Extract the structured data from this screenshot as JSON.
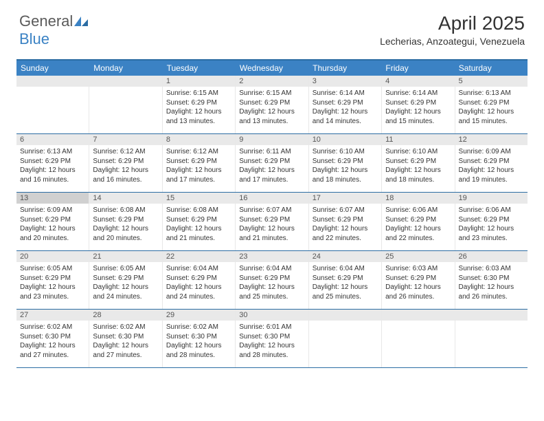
{
  "logo": {
    "part1": "General",
    "part2": "Blue"
  },
  "title": "April 2025",
  "location": "Lecherias, Anzoategui, Venezuela",
  "accent_color": "#3b82c4",
  "border_color": "#2b6ca3",
  "daynum_bg": "#e9e9e9",
  "highlight_bg": "#d0d0d0",
  "dow": [
    "Sunday",
    "Monday",
    "Tuesday",
    "Wednesday",
    "Thursday",
    "Friday",
    "Saturday"
  ],
  "weeks": [
    [
      {
        "n": "",
        "sr": "",
        "ss": "",
        "dl": ""
      },
      {
        "n": "",
        "sr": "",
        "ss": "",
        "dl": ""
      },
      {
        "n": "1",
        "sr": "Sunrise: 6:15 AM",
        "ss": "Sunset: 6:29 PM",
        "dl": "Daylight: 12 hours and 13 minutes."
      },
      {
        "n": "2",
        "sr": "Sunrise: 6:15 AM",
        "ss": "Sunset: 6:29 PM",
        "dl": "Daylight: 12 hours and 13 minutes."
      },
      {
        "n": "3",
        "sr": "Sunrise: 6:14 AM",
        "ss": "Sunset: 6:29 PM",
        "dl": "Daylight: 12 hours and 14 minutes."
      },
      {
        "n": "4",
        "sr": "Sunrise: 6:14 AM",
        "ss": "Sunset: 6:29 PM",
        "dl": "Daylight: 12 hours and 15 minutes."
      },
      {
        "n": "5",
        "sr": "Sunrise: 6:13 AM",
        "ss": "Sunset: 6:29 PM",
        "dl": "Daylight: 12 hours and 15 minutes."
      }
    ],
    [
      {
        "n": "6",
        "sr": "Sunrise: 6:13 AM",
        "ss": "Sunset: 6:29 PM",
        "dl": "Daylight: 12 hours and 16 minutes."
      },
      {
        "n": "7",
        "sr": "Sunrise: 6:12 AM",
        "ss": "Sunset: 6:29 PM",
        "dl": "Daylight: 12 hours and 16 minutes."
      },
      {
        "n": "8",
        "sr": "Sunrise: 6:12 AM",
        "ss": "Sunset: 6:29 PM",
        "dl": "Daylight: 12 hours and 17 minutes."
      },
      {
        "n": "9",
        "sr": "Sunrise: 6:11 AM",
        "ss": "Sunset: 6:29 PM",
        "dl": "Daylight: 12 hours and 17 minutes."
      },
      {
        "n": "10",
        "sr": "Sunrise: 6:10 AM",
        "ss": "Sunset: 6:29 PM",
        "dl": "Daylight: 12 hours and 18 minutes."
      },
      {
        "n": "11",
        "sr": "Sunrise: 6:10 AM",
        "ss": "Sunset: 6:29 PM",
        "dl": "Daylight: 12 hours and 18 minutes."
      },
      {
        "n": "12",
        "sr": "Sunrise: 6:09 AM",
        "ss": "Sunset: 6:29 PM",
        "dl": "Daylight: 12 hours and 19 minutes."
      }
    ],
    [
      {
        "n": "13",
        "hl": true,
        "sr": "Sunrise: 6:09 AM",
        "ss": "Sunset: 6:29 PM",
        "dl": "Daylight: 12 hours and 20 minutes."
      },
      {
        "n": "14",
        "sr": "Sunrise: 6:08 AM",
        "ss": "Sunset: 6:29 PM",
        "dl": "Daylight: 12 hours and 20 minutes."
      },
      {
        "n": "15",
        "sr": "Sunrise: 6:08 AM",
        "ss": "Sunset: 6:29 PM",
        "dl": "Daylight: 12 hours and 21 minutes."
      },
      {
        "n": "16",
        "sr": "Sunrise: 6:07 AM",
        "ss": "Sunset: 6:29 PM",
        "dl": "Daylight: 12 hours and 21 minutes."
      },
      {
        "n": "17",
        "sr": "Sunrise: 6:07 AM",
        "ss": "Sunset: 6:29 PM",
        "dl": "Daylight: 12 hours and 22 minutes."
      },
      {
        "n": "18",
        "sr": "Sunrise: 6:06 AM",
        "ss": "Sunset: 6:29 PM",
        "dl": "Daylight: 12 hours and 22 minutes."
      },
      {
        "n": "19",
        "sr": "Sunrise: 6:06 AM",
        "ss": "Sunset: 6:29 PM",
        "dl": "Daylight: 12 hours and 23 minutes."
      }
    ],
    [
      {
        "n": "20",
        "sr": "Sunrise: 6:05 AM",
        "ss": "Sunset: 6:29 PM",
        "dl": "Daylight: 12 hours and 23 minutes."
      },
      {
        "n": "21",
        "sr": "Sunrise: 6:05 AM",
        "ss": "Sunset: 6:29 PM",
        "dl": "Daylight: 12 hours and 24 minutes."
      },
      {
        "n": "22",
        "sr": "Sunrise: 6:04 AM",
        "ss": "Sunset: 6:29 PM",
        "dl": "Daylight: 12 hours and 24 minutes."
      },
      {
        "n": "23",
        "sr": "Sunrise: 6:04 AM",
        "ss": "Sunset: 6:29 PM",
        "dl": "Daylight: 12 hours and 25 minutes."
      },
      {
        "n": "24",
        "sr": "Sunrise: 6:04 AM",
        "ss": "Sunset: 6:29 PM",
        "dl": "Daylight: 12 hours and 25 minutes."
      },
      {
        "n": "25",
        "sr": "Sunrise: 6:03 AM",
        "ss": "Sunset: 6:29 PM",
        "dl": "Daylight: 12 hours and 26 minutes."
      },
      {
        "n": "26",
        "sr": "Sunrise: 6:03 AM",
        "ss": "Sunset: 6:30 PM",
        "dl": "Daylight: 12 hours and 26 minutes."
      }
    ],
    [
      {
        "n": "27",
        "sr": "Sunrise: 6:02 AM",
        "ss": "Sunset: 6:30 PM",
        "dl": "Daylight: 12 hours and 27 minutes."
      },
      {
        "n": "28",
        "sr": "Sunrise: 6:02 AM",
        "ss": "Sunset: 6:30 PM",
        "dl": "Daylight: 12 hours and 27 minutes."
      },
      {
        "n": "29",
        "sr": "Sunrise: 6:02 AM",
        "ss": "Sunset: 6:30 PM",
        "dl": "Daylight: 12 hours and 28 minutes."
      },
      {
        "n": "30",
        "sr": "Sunrise: 6:01 AM",
        "ss": "Sunset: 6:30 PM",
        "dl": "Daylight: 12 hours and 28 minutes."
      },
      {
        "n": "",
        "sr": "",
        "ss": "",
        "dl": ""
      },
      {
        "n": "",
        "sr": "",
        "ss": "",
        "dl": ""
      },
      {
        "n": "",
        "sr": "",
        "ss": "",
        "dl": ""
      }
    ]
  ]
}
